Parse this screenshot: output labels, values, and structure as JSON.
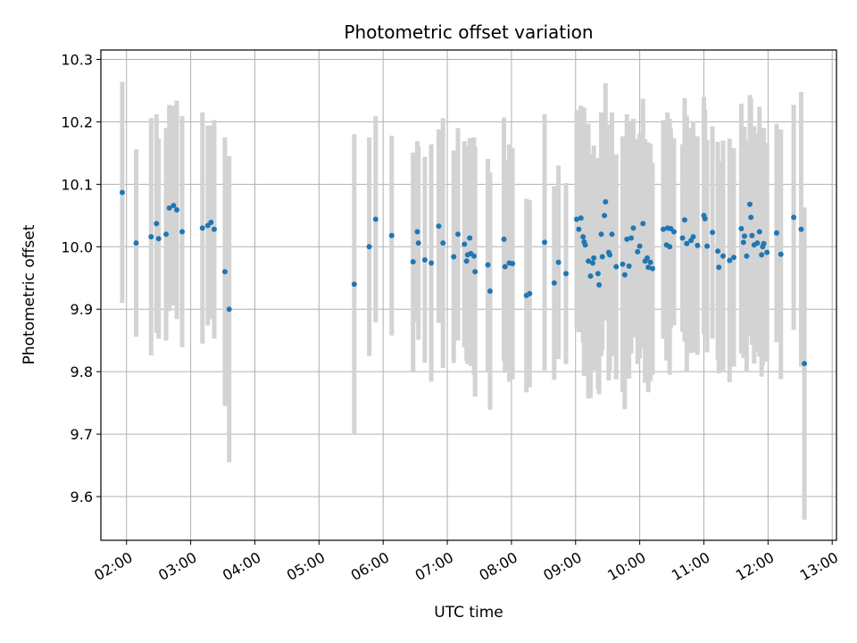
{
  "chart_data": {
    "type": "scatter",
    "title": "Photometric offset variation",
    "xlabel": "UTC time",
    "ylabel": "Photometric offset",
    "xlim": [
      "01:36",
      "13:04"
    ],
    "ylim": [
      9.53,
      10.315
    ],
    "x_ticks": [
      "02:00",
      "03:00",
      "04:00",
      "05:00",
      "06:00",
      "07:00",
      "08:00",
      "09:00",
      "10:00",
      "11:00",
      "12:00",
      "13:00"
    ],
    "y_ticks": [
      9.6,
      9.7,
      9.8,
      9.9,
      10.0,
      10.1,
      10.2,
      10.3
    ],
    "grid": true,
    "colors": {
      "point": "#1f77b4",
      "errorbar": "#d3d3d3",
      "grid": "#b0b0b0"
    },
    "series": [
      {
        "x": [
          "01:56",
          "02:09",
          "02:23",
          "02:28",
          "02:30",
          "02:37",
          "02:40",
          "02:44",
          "02:47",
          "02:52",
          "03:11",
          "03:16",
          "03:19",
          "03:22",
          "03:32",
          "03:36",
          "05:33",
          "05:47",
          "05:53",
          "06:08",
          "06:28",
          "06:32",
          "06:33",
          "06:39",
          "06:45",
          "06:52",
          "06:56",
          "07:06",
          "07:10",
          "07:16",
          "07:18",
          "07:19",
          "07:21",
          "07:22",
          "07:25",
          "07:26",
          "07:38",
          "07:40",
          "07:53",
          "07:54",
          "07:58",
          "08:01",
          "08:14",
          "08:17",
          "08:31",
          "08:40",
          "08:44",
          "08:51",
          "09:01",
          "09:03",
          "09:05",
          "09:07",
          "09:08",
          "09:09",
          "09:12",
          "09:14",
          "09:16",
          "09:17",
          "09:21",
          "09:22",
          "09:24",
          "09:25",
          "09:27",
          "09:28",
          "09:31",
          "09:32",
          "09:34",
          "09:38",
          "09:44",
          "09:46",
          "09:48",
          "09:50",
          "09:52",
          "09:54",
          "09:58",
          "10:00",
          "10:03",
          "10:05",
          "10:07",
          "10:08",
          "10:10",
          "10:12",
          "10:22",
          "10:25",
          "10:26",
          "10:28",
          "10:29",
          "10:32",
          "10:40",
          "10:42",
          "10:44",
          "10:48",
          "10:50",
          "10:54",
          "11:00",
          "11:01",
          "11:03",
          "11:08",
          "11:13",
          "11:14",
          "11:18",
          "11:24",
          "11:28",
          "11:35",
          "11:37",
          "11:38",
          "11:40",
          "11:43",
          "11:44",
          "11:45",
          "11:47",
          "11:50",
          "11:52",
          "11:54",
          "11:55",
          "11:56",
          "11:59",
          "12:08",
          "12:12",
          "12:24",
          "12:31",
          "12:34"
        ],
        "y": [
          10.087,
          10.006,
          10.016,
          10.037,
          10.013,
          10.02,
          10.062,
          10.066,
          10.059,
          10.024,
          10.03,
          10.034,
          10.039,
          10.028,
          9.96,
          9.9,
          9.94,
          10.0,
          10.044,
          10.018,
          9.976,
          10.024,
          10.006,
          9.979,
          9.974,
          10.033,
          10.006,
          9.984,
          10.02,
          10.004,
          9.977,
          9.987,
          10.014,
          9.989,
          9.985,
          9.96,
          9.971,
          9.929,
          10.012,
          9.968,
          9.974,
          9.973,
          9.922,
          9.925,
          10.007,
          9.942,
          9.975,
          9.957,
          10.044,
          10.028,
          10.046,
          10.016,
          10.008,
          10.003,
          9.977,
          9.953,
          9.974,
          9.982,
          9.957,
          9.939,
          10.02,
          9.984,
          10.05,
          10.072,
          9.991,
          9.987,
          10.02,
          9.968,
          9.972,
          9.955,
          10.012,
          9.969,
          10.014,
          10.03,
          9.992,
          10.001,
          10.037,
          9.977,
          9.982,
          9.967,
          9.975,
          9.965,
          10.028,
          10.003,
          10.03,
          10.0,
          10.029,
          10.024,
          10.014,
          10.043,
          10.005,
          10.01,
          10.016,
          10.002,
          10.05,
          10.045,
          10.001,
          10.023,
          9.993,
          9.967,
          9.985,
          9.978,
          9.983,
          10.029,
          10.007,
          10.017,
          9.985,
          10.068,
          10.047,
          10.018,
          10.003,
          10.006,
          10.024,
          9.987,
          10.0,
          10.005,
          9.991,
          10.022,
          9.988,
          10.047,
          10.028,
          9.813
        ],
        "err": [
          0.177,
          0.15,
          0.19,
          0.175,
          0.16,
          0.17,
          0.165,
          0.16,
          0.175,
          0.185,
          0.185,
          0.16,
          0.155,
          0.175,
          0.215,
          0.245,
          0.24,
          0.175,
          0.165,
          0.16,
          0.175,
          0.145,
          0.155,
          0.165,
          0.19,
          0.155,
          0.2,
          0.17,
          0.17,
          0.165,
          0.16,
          0.175,
          0.16,
          0.18,
          0.19,
          0.2,
          0.17,
          0.19,
          0.195,
          0.17,
          0.19,
          0.185,
          0.155,
          0.15,
          0.205,
          0.155,
          0.155,
          0.145,
          0.175,
          0.165,
          0.18,
          0.17,
          0.215,
          0.185,
          0.22,
          0.195,
          0.17,
          0.18,
          0.185,
          0.175,
          0.195,
          0.15,
          0.16,
          0.19,
          0.205,
          0.185,
          0.195,
          0.18,
          0.205,
          0.215,
          0.2,
          0.18,
          0.185,
          0.175,
          0.18,
          0.18,
          0.2,
          0.195,
          0.18,
          0.2,
          0.19,
          0.17,
          0.175,
          0.185,
          0.185,
          0.205,
          0.16,
          0.15,
          0.15,
          0.195,
          0.205,
          0.18,
          0.185,
          0.175,
          0.19,
          0.175,
          0.17,
          0.17,
          0.175,
          0.17,
          0.185,
          0.195,
          0.175,
          0.2,
          0.185,
          0.175,
          0.185,
          0.175,
          0.19,
          0.175,
          0.19,
          0.175,
          0.2,
          0.195,
          0.19,
          0.185,
          0.175,
          0.175,
          0.2,
          0.18,
          0.22,
          0.25
        ]
      }
    ]
  }
}
